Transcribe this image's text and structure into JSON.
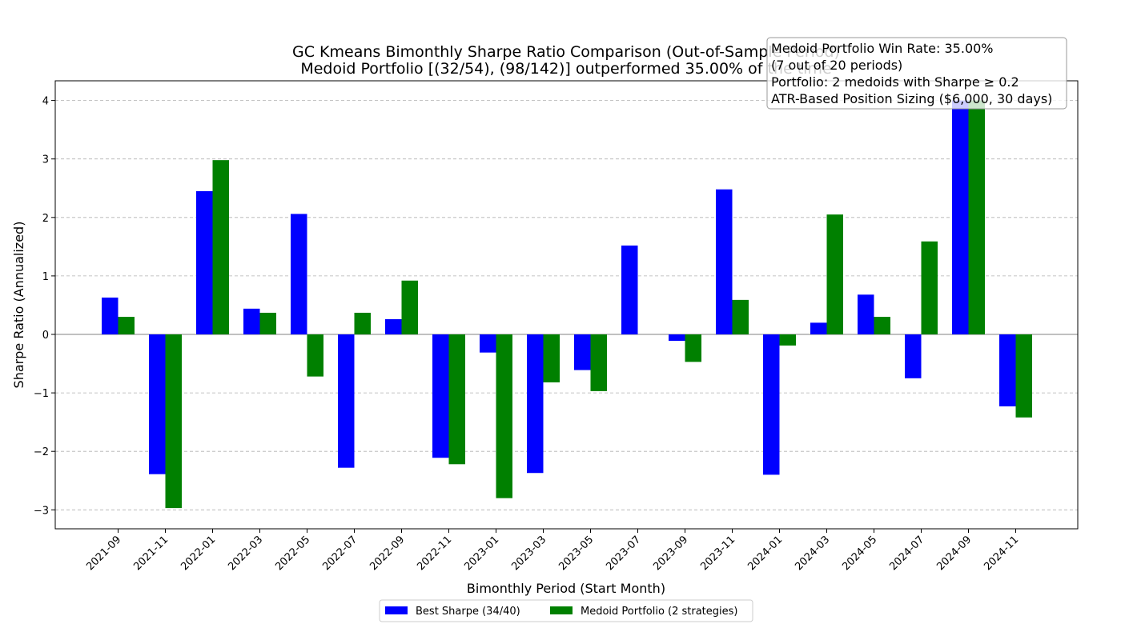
{
  "chart_data": {
    "type": "bar",
    "title_line1": "GC Kmeans Bimonthly Sharpe Ratio Comparison (Out-of-Sample Period)",
    "title_line2": "Medoid Portfolio [(32/54), (98/142)] outperformed 35.00% of the time",
    "xlabel": "Bimonthly Period (Start Month)",
    "ylabel": "Sharpe Ratio (Annualized)",
    "ylim": [
      -3.3,
      4.3
    ],
    "yticks": [
      -3,
      -2,
      -1,
      0,
      1,
      2,
      3,
      4
    ],
    "ytick_labels": [
      "−3",
      "−2",
      "−1",
      "0",
      "1",
      "2",
      "3",
      "4"
    ],
    "grid": "horizontal dashed",
    "legend_position": "bottom-center",
    "categories": [
      "2021-09",
      "2021-11",
      "2022-01",
      "2022-03",
      "2022-05",
      "2022-07",
      "2022-09",
      "2022-11",
      "2023-01",
      "2023-03",
      "2023-05",
      "2023-07",
      "2023-09",
      "2023-11",
      "2024-01",
      "2024-03",
      "2024-05",
      "2024-07",
      "2024-09",
      "2024-11"
    ],
    "series": [
      {
        "name": "Best Sharpe (34/40)",
        "color": "#0000ff",
        "values": [
          0.63,
          -2.39,
          2.45,
          0.44,
          2.06,
          -2.28,
          0.26,
          -2.11,
          -0.31,
          -2.37,
          -0.61,
          1.52,
          -0.11,
          2.48,
          -2.4,
          0.2,
          0.68,
          -0.75,
          4.0,
          -1.23
        ]
      },
      {
        "name": "Medoid Portfolio (2 strategies)",
        "color": "#008000",
        "values": [
          0.3,
          -2.97,
          2.98,
          0.37,
          -0.72,
          0.37,
          0.92,
          -2.22,
          -2.8,
          -0.82,
          -0.97,
          0.0,
          -0.47,
          0.59,
          -0.19,
          2.05,
          0.3,
          1.59,
          4.0,
          -1.42
        ]
      }
    ],
    "info_box": [
      "Medoid Portfolio Win Rate: 35.00%",
      "(7 out of 20 periods)",
      "Portfolio: 2 medoids with Sharpe ≥ 0.2",
      "ATR-Based Position Sizing ($6,000, 30 days)"
    ]
  }
}
